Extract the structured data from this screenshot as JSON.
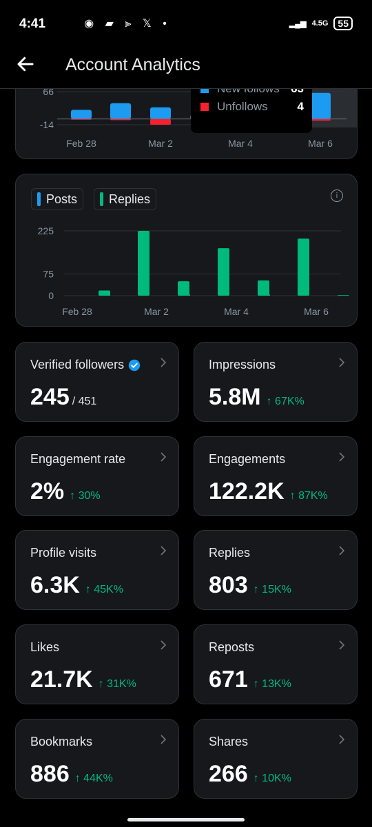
{
  "status": {
    "time": "4:41",
    "battery": "55",
    "net": "4.5G"
  },
  "header": {
    "title": "Account Analytics"
  },
  "followers_chart": {
    "y_ticks": [
      "66",
      "-14"
    ],
    "x_ticks": [
      "Feb 28",
      "Mar 2",
      "Mar 4",
      "Mar 6"
    ],
    "tooltip": [
      {
        "label": "New follows",
        "value": "63",
        "color": "#1d9bf0"
      },
      {
        "label": "Unfollows",
        "value": "4",
        "color": "#f4212e"
      }
    ]
  },
  "posts_chart": {
    "legend": [
      {
        "label": "Posts",
        "color": "#1d9bf0"
      },
      {
        "label": "Replies",
        "color": "#00ba7c"
      }
    ],
    "y_ticks": [
      "225",
      "75",
      "0"
    ],
    "x_ticks": [
      "Feb 28",
      "Mar 2",
      "Mar 4",
      "Mar 6"
    ]
  },
  "chart_data": [
    {
      "type": "bar",
      "series": [
        {
          "name": "New follows",
          "values": [
            22,
            38,
            28,
            8,
            6,
            5,
            63
          ]
        },
        {
          "name": "Unfollows",
          "values": [
            -2,
            -3,
            -14,
            -1,
            -1,
            -4,
            -4
          ]
        }
      ],
      "x_ticks": [
        "Feb 28",
        "Mar 2",
        "Mar 4",
        "Mar 6"
      ],
      "ylim": [
        -14,
        66
      ]
    },
    {
      "type": "bar",
      "x_ticks": [
        "Feb 28",
        "Mar 2",
        "Mar 4",
        "Mar 6"
      ],
      "series": [
        {
          "name": "Posts",
          "values": [
            0,
            1,
            0,
            1,
            0,
            1,
            0
          ]
        },
        {
          "name": "Replies",
          "values": [
            18,
            225,
            50,
            165,
            53,
            198,
            2
          ]
        }
      ],
      "ylim": [
        0,
        225
      ]
    }
  ],
  "stats": [
    {
      "label": "Verified followers",
      "value": "245",
      "sub": "/ 451",
      "change": "",
      "verified": true
    },
    {
      "label": "Impressions",
      "value": "5.8M",
      "sub": "",
      "change": "↑ 67K%"
    },
    {
      "label": "Engagement rate",
      "value": "2%",
      "sub": "",
      "change": "↑ 30%"
    },
    {
      "label": "Engagements",
      "value": "122.2K",
      "sub": "",
      "change": "↑ 87K%"
    },
    {
      "label": "Profile visits",
      "value": "6.3K",
      "sub": "",
      "change": "↑ 45K%"
    },
    {
      "label": "Replies",
      "value": "803",
      "sub": "",
      "change": "↑ 15K%"
    },
    {
      "label": "Likes",
      "value": "21.7K",
      "sub": "",
      "change": "↑ 31K%"
    },
    {
      "label": "Reposts",
      "value": "671",
      "sub": "",
      "change": "↑ 13K%"
    },
    {
      "label": "Bookmarks",
      "value": "886",
      "sub": "",
      "change": "↑ 44K%"
    },
    {
      "label": "Shares",
      "value": "266",
      "sub": "",
      "change": "↑ 10K%"
    }
  ]
}
